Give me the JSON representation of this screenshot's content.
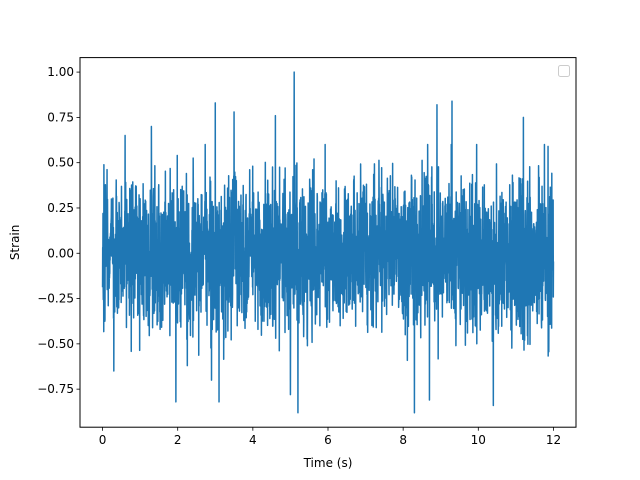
{
  "chart_data": {
    "type": "line",
    "title": "",
    "xlabel": "Time (s)",
    "ylabel": "Strain",
    "xlim": [
      -0.6,
      12.6
    ],
    "ylim": [
      -0.96,
      1.08
    ],
    "x_ticks": [
      0,
      2,
      4,
      6,
      8,
      10,
      12
    ],
    "y_ticks": [
      -0.75,
      -0.5,
      -0.25,
      0.0,
      0.25,
      0.5,
      0.75,
      1.0
    ],
    "x_tick_labels": [
      "0",
      "2",
      "4",
      "6",
      "8",
      "10",
      "12"
    ],
    "y_tick_labels": [
      "−0.75",
      "−0.50",
      "−0.25",
      "0.00",
      "0.25",
      "0.50",
      "0.75",
      "1.00"
    ],
    "grid": false,
    "legend": {
      "placement": "top-right",
      "entries": []
    },
    "series": [
      {
        "color": "#1f77b4",
        "description": "noise-like strain signal, approximately symmetric about 0",
        "x_range": [
          0,
          12
        ],
        "typical_envelope": [
          -0.45,
          0.45
        ],
        "peaks": [
          {
            "x": 5.1,
            "y": 1.0
          },
          {
            "x": 9.3,
            "y": 0.84
          },
          {
            "x": 3.0,
            "y": 0.83
          },
          {
            "x": 8.9,
            "y": 0.82
          },
          {
            "x": 3.5,
            "y": 0.78
          },
          {
            "x": 4.6,
            "y": 0.76
          },
          {
            "x": 11.2,
            "y": 0.75
          },
          {
            "x": 1.3,
            "y": 0.7
          },
          {
            "x": 0.6,
            "y": 0.65
          }
        ],
        "troughs": [
          {
            "x": 5.2,
            "y": -0.88
          },
          {
            "x": 8.3,
            "y": -0.88
          },
          {
            "x": 10.4,
            "y": -0.84
          },
          {
            "x": 1.95,
            "y": -0.82
          },
          {
            "x": 3.1,
            "y": -0.82
          },
          {
            "x": 5.0,
            "y": -0.78
          },
          {
            "x": 8.7,
            "y": -0.81
          },
          {
            "x": 2.9,
            "y": -0.7
          },
          {
            "x": 0.3,
            "y": -0.65
          }
        ]
      }
    ]
  }
}
